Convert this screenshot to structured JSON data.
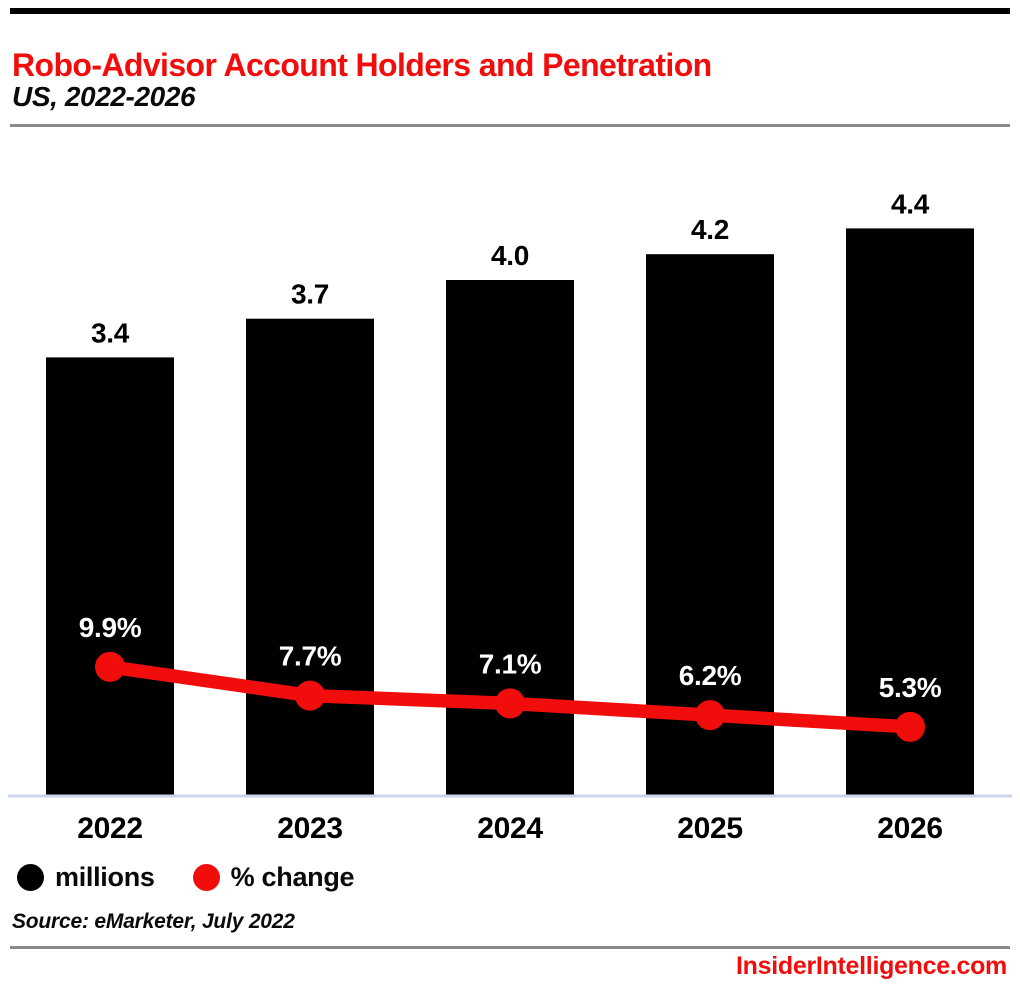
{
  "header": {
    "title": "Robo-Advisor Account Holders and Penetration",
    "subtitle": "US, 2022-2026"
  },
  "footer": {
    "source": "Source: eMarketer, July 2022",
    "website": "InsiderIntelligence.com"
  },
  "colors": {
    "accent_red": "#f20d0d",
    "bar_black": "#000000",
    "axis_line": "#ccd5ea",
    "pct_label": "#ffffff",
    "value_label": "#000000",
    "divider_gray": "#8a8a8a"
  },
  "legend": {
    "items": [
      {
        "label": "millions",
        "color": "#000000"
      },
      {
        "label": "% change",
        "color": "#f20d0d"
      }
    ]
  },
  "chart_data": {
    "type": "combo: bar + line",
    "title": "Robo-Advisor Account Holders and Penetration",
    "subtitle": "US, 2022-2026",
    "categories": [
      "2022",
      "2023",
      "2024",
      "2025",
      "2026"
    ],
    "series": [
      {
        "name": "millions",
        "type": "bar",
        "color": "#000000",
        "values": [
          3.4,
          3.7,
          4.0,
          4.2,
          4.4
        ],
        "label_suffix": ""
      },
      {
        "name": "% change",
        "type": "line",
        "color": "#f20d0d",
        "values": [
          9.9,
          7.7,
          7.1,
          6.2,
          5.3
        ],
        "label_suffix": "%"
      }
    ],
    "bar_axis_range": [
      0,
      5.08
    ],
    "line_axis_range": [
      0,
      50.3
    ],
    "grid": false,
    "axes_ticks_visible": false,
    "legend_position": "bottom-left",
    "data_labels": "above bars (black) and above line markers (white)"
  }
}
